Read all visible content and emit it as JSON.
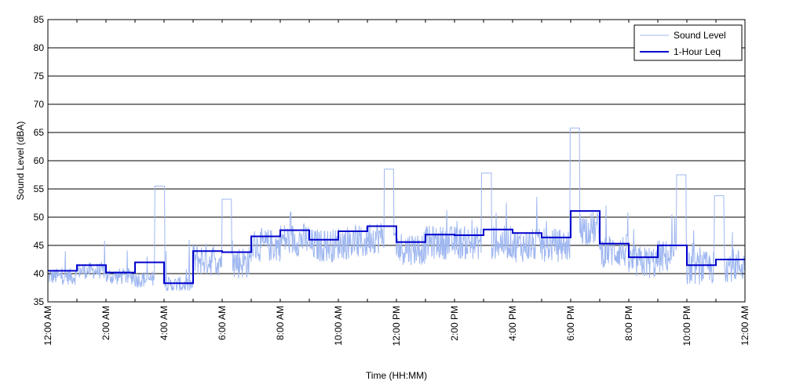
{
  "chart_data": {
    "type": "line",
    "xlabel": "Time (HH:MM)",
    "ylabel": "Sound Level (dBA)",
    "ylim": [
      35,
      85
    ],
    "xlim_hours": [
      0,
      24
    ],
    "yticks": [
      35,
      40,
      45,
      50,
      55,
      60,
      65,
      70,
      75,
      80,
      85
    ],
    "xtick_labels": [
      "12:00 AM",
      "2:00 AM",
      "4:00 AM",
      "6:00 AM",
      "8:00 AM",
      "10:00 AM",
      "12:00 PM",
      "2:00 PM",
      "4:00 PM",
      "6:00 PM",
      "8:00 PM",
      "10:00 PM",
      "12:00 AM"
    ],
    "grid": "horizontal",
    "legend_position": "top-right",
    "colors": {
      "sound_level": "#9fb7f0",
      "leq": "#0000cc"
    },
    "series": [
      {
        "name": "Sound Level",
        "hourly_baseline": [
          39.5,
          40.5,
          39.5,
          39.0,
          38.0,
          42.5,
          42.0,
          45.0,
          46.0,
          45.0,
          45.5,
          46.5,
          44.5,
          45.5,
          45.5,
          45.5,
          45.0,
          45.0,
          48.0,
          44.0,
          42.0,
          43.0,
          41.0,
          41.5
        ],
        "peaks": [
          {
            "x": 3.85,
            "y": 55.5
          },
          {
            "x": 6.15,
            "y": 53.2
          },
          {
            "x": 11.75,
            "y": 58.5
          },
          {
            "x": 15.1,
            "y": 57.8
          },
          {
            "x": 18.15,
            "y": 65.8
          },
          {
            "x": 21.8,
            "y": 57.5
          },
          {
            "x": 23.1,
            "y": 53.8
          }
        ]
      },
      {
        "name": "1-Hour Leq",
        "hour_start": [
          0,
          1,
          2,
          3,
          4,
          5,
          6,
          7,
          8,
          9,
          10,
          11,
          12,
          13,
          14,
          15,
          16,
          17,
          18,
          19,
          20,
          21,
          22,
          23
        ],
        "values": [
          40.5,
          41.5,
          40.2,
          42.0,
          38.3,
          44.0,
          43.8,
          46.6,
          47.7,
          46.0,
          47.5,
          48.4,
          45.6,
          46.9,
          46.8,
          47.8,
          47.2,
          46.4,
          51.1,
          45.3,
          42.9,
          45.0,
          41.5,
          42.5
        ]
      }
    ]
  }
}
